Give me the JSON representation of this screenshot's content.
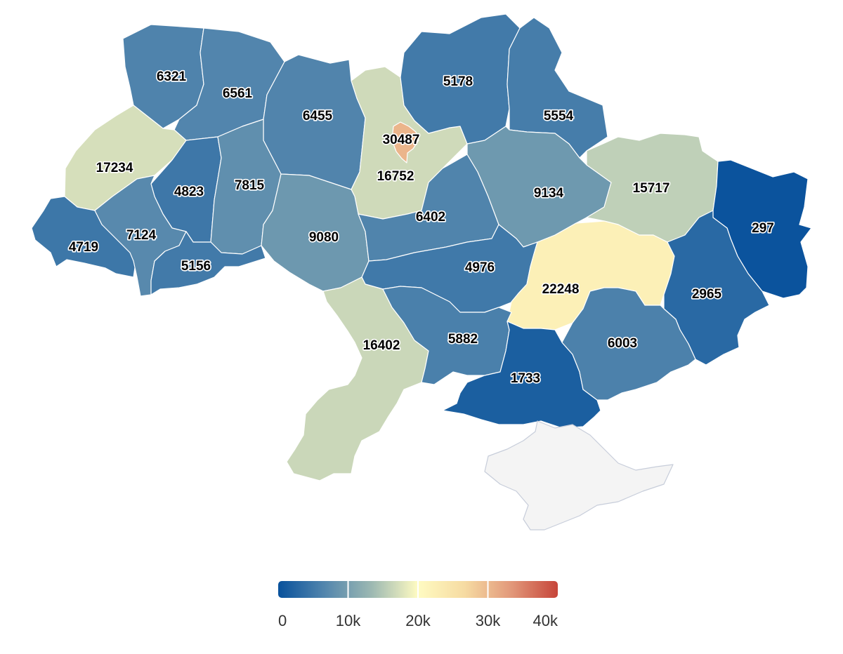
{
  "color_scale": {
    "min": 0,
    "max": 40000,
    "stops": [
      "#08519c",
      "#5386ad",
      "#9cb8b2",
      "#fffbc2",
      "#f6dba2",
      "#e2987a",
      "#c6453a"
    ],
    "no_data_color": "#f4f4f4",
    "tick_labels": [
      "0",
      "10k",
      "20k",
      "30k",
      "40k"
    ],
    "tick_values": [
      0,
      10000,
      20000,
      30000,
      40000
    ]
  },
  "regions": [
    {
      "id": "volyn",
      "value": 6321,
      "label": "6321"
    },
    {
      "id": "rivne",
      "value": 6561,
      "label": "6561"
    },
    {
      "id": "zhytomyr",
      "value": 6455,
      "label": "6455"
    },
    {
      "id": "kyiv-city",
      "value": 30487,
      "label": "30487"
    },
    {
      "id": "kyiv-oblast",
      "value": 16752,
      "label": "16752"
    },
    {
      "id": "chernihiv",
      "value": 5178,
      "label": "5178"
    },
    {
      "id": "sumy",
      "value": 5554,
      "label": "5554"
    },
    {
      "id": "lviv",
      "value": 17234,
      "label": "17234"
    },
    {
      "id": "ternopil",
      "value": 4823,
      "label": "4823"
    },
    {
      "id": "khmelnytskyi",
      "value": 7815,
      "label": "7815"
    },
    {
      "id": "vinnytsia",
      "value": 9080,
      "label": "9080"
    },
    {
      "id": "cherkasy",
      "value": 6402,
      "label": "6402"
    },
    {
      "id": "poltava",
      "value": 9134,
      "label": "9134"
    },
    {
      "id": "kharkiv",
      "value": 15717,
      "label": "15717"
    },
    {
      "id": "luhansk",
      "value": 297,
      "label": "297"
    },
    {
      "id": "zakarpattia",
      "value": 4719,
      "label": "4719"
    },
    {
      "id": "ivano-frankivsk",
      "value": 7124,
      "label": "7124"
    },
    {
      "id": "chernivtsi",
      "value": 5156,
      "label": "5156"
    },
    {
      "id": "kirovohrad",
      "value": 4976,
      "label": "4976"
    },
    {
      "id": "dnipropetrovsk",
      "value": 22248,
      "label": "22248"
    },
    {
      "id": "donetsk",
      "value": 2965,
      "label": "2965"
    },
    {
      "id": "odesa",
      "value": 16402,
      "label": "16402"
    },
    {
      "id": "mykolaiv",
      "value": 5882,
      "label": "5882"
    },
    {
      "id": "kherson",
      "value": 1733,
      "label": "1733"
    },
    {
      "id": "zaporizhzhia",
      "value": 6003,
      "label": "6003"
    },
    {
      "id": "crimea",
      "value": null,
      "label": ""
    }
  ]
}
